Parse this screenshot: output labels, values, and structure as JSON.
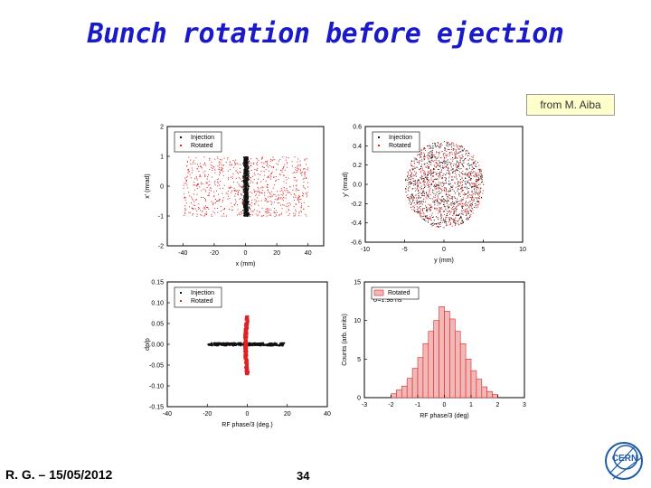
{
  "slide": {
    "title": "Bunch rotation before ejection",
    "credit": "from M. Aiba",
    "footer_left": "R. G. – 15/05/2012",
    "page_number": "34"
  },
  "colors": {
    "title": "#1a1ac8",
    "injection": "#111111",
    "rotated": "#dd2222",
    "hist_fill": "#f2b8b8"
  },
  "chart_data": [
    {
      "type": "scatter",
      "xlabel": "x (mm)",
      "ylabel": "x' (mrad)",
      "xlim": [
        -50,
        50
      ],
      "ylim": [
        -2,
        2
      ],
      "xticks": [
        "-40",
        "-20",
        "0",
        "20",
        "40"
      ],
      "yticks": [
        "-2",
        "-1",
        "0",
        "1",
        "2"
      ],
      "legend": {
        "position": "top-left",
        "entries": [
          "Injection",
          "Rotated"
        ]
      },
      "series": [
        {
          "name": "Injection",
          "x_range": [
            -4,
            4
          ],
          "y_range": [
            -1.0,
            1.0
          ],
          "shape": "vertical band"
        },
        {
          "name": "Rotated",
          "x_range": [
            -40,
            40
          ],
          "y_range": [
            -1.0,
            1.0
          ],
          "shape": "horizontal band"
        }
      ]
    },
    {
      "type": "scatter",
      "xlabel": "y (mm)",
      "ylabel": "y' (mrad)",
      "xlim": [
        -10,
        10
      ],
      "ylim": [
        -0.6,
        0.6
      ],
      "xticks": [
        "-10",
        "-5",
        "0",
        "5",
        "10"
      ],
      "yticks": [
        "-0.6",
        "-0.4",
        "-0.2",
        "0.0",
        "0.2",
        "0.4",
        "0.6"
      ],
      "legend": {
        "position": "top-left",
        "entries": [
          "Injection",
          "Rotated"
        ]
      },
      "series": [
        {
          "name": "Injection",
          "center": [
            0,
            0
          ],
          "radius_x": 5,
          "radius_y": 0.45,
          "shape": "disc"
        },
        {
          "name": "Rotated",
          "center": [
            0,
            0
          ],
          "radius_x": 5,
          "radius_y": 0.45,
          "shape": "disc"
        }
      ]
    },
    {
      "type": "scatter",
      "xlabel": "RF phase/3 (deg.)",
      "ylabel": "dp/p",
      "xlim": [
        -40,
        40
      ],
      "ylim": [
        -0.15,
        0.15
      ],
      "xticks": [
        "-40",
        "-20",
        "0",
        "20",
        "40"
      ],
      "yticks": [
        "-0.15",
        "-0.10",
        "-0.05",
        "0.00",
        "0.05",
        "0.10",
        "0.15"
      ],
      "legend": {
        "position": "top-left",
        "entries": [
          "Injection",
          "Rotated"
        ]
      },
      "series": [
        {
          "name": "Injection",
          "x_range": [
            -20,
            18
          ],
          "y_value": 0.0,
          "shape": "horizontal line"
        },
        {
          "name": "Rotated",
          "x_range": [
            -2,
            2
          ],
          "y_range": [
            -0.07,
            0.07
          ],
          "shape": "curved vertical band"
        }
      ]
    },
    {
      "type": "bar",
      "xlabel": "RF phase/3 (deg)",
      "ylabel": "Counts (arb. units)",
      "xlim": [
        -3,
        3
      ],
      "ylim": [
        0,
        15
      ],
      "xticks": [
        "-3",
        "-2",
        "-1",
        "0",
        "1",
        "2",
        "3"
      ],
      "yticks": [
        "0",
        "5",
        "10",
        "15"
      ],
      "legend": {
        "position": "top-left",
        "entries": [
          "Rotated"
        ]
      },
      "annotation": "σ=1.98 ns",
      "bin_width": 0.2,
      "bin_left_edges": [
        -2.0,
        -1.8,
        -1.6,
        -1.4,
        -1.2,
        -1.0,
        -0.8,
        -0.6,
        -0.4,
        -0.2,
        0.0,
        0.2,
        0.4,
        0.6,
        0.8,
        1.0,
        1.2,
        1.4,
        1.6,
        1.8
      ],
      "values": [
        0.5,
        1.0,
        1.5,
        2.5,
        3.8,
        5.2,
        7.0,
        8.6,
        10.0,
        11.8,
        11.2,
        10.2,
        8.6,
        7.0,
        5.0,
        3.5,
        2.4,
        1.4,
        0.8,
        0.4
      ]
    }
  ]
}
